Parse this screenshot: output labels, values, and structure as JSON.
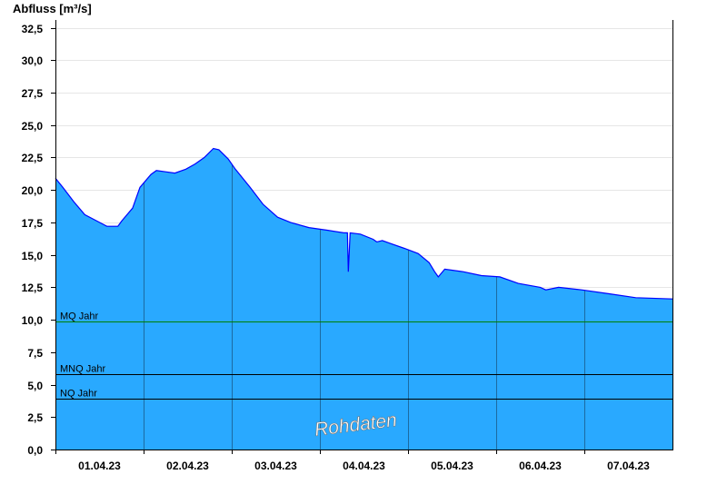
{
  "chart_data": {
    "type": "area",
    "ylabel": "Abfluss [m³/s]",
    "ylim": [
      0,
      33.1
    ],
    "yticks": [
      "0,0",
      "2,5",
      "5,0",
      "7,5",
      "10,0",
      "12,5",
      "15,0",
      "17,5",
      "20,0",
      "22,5",
      "25,0",
      "27,5",
      "30,0",
      "32,5"
    ],
    "ytick_values": [
      0,
      2.5,
      5,
      7.5,
      10,
      12.5,
      15,
      17.5,
      20,
      22.5,
      25,
      27.5,
      30,
      32.5
    ],
    "xlim": [
      "01.04.23 00:00",
      "08.04.23 00:00"
    ],
    "xticks": [
      "01.04.23",
      "02.04.23",
      "03.04.23",
      "04.04.23",
      "05.04.23",
      "06.04.23",
      "07.04.23"
    ],
    "grid": true,
    "colors": {
      "fill": "#29a9ff",
      "line": "#0000ff",
      "mq": "#008000",
      "ref": "#000000",
      "grid": "#e6e6e6"
    },
    "reference_lines": [
      {
        "label": "MQ Jahr",
        "value": 9.9
      },
      {
        "label": "MNQ Jahr",
        "value": 5.8
      },
      {
        "label": "NQ Jahr",
        "value": 3.9
      }
    ],
    "watermark": "Rohdaten",
    "series": [
      {
        "points": [
          [
            "01.04.23 00:00",
            20.9
          ],
          [
            "01.04.23 02:00",
            20.2
          ],
          [
            "01.04.23 05:00",
            19.1
          ],
          [
            "01.04.23 08:00",
            18.1
          ],
          [
            "01.04.23 12:00",
            17.5
          ],
          [
            "01.04.23 14:00",
            17.2
          ],
          [
            "01.04.23 17:00",
            17.2
          ],
          [
            "01.04.23 18:00",
            17.6
          ],
          [
            "01.04.23 21:00",
            18.6
          ],
          [
            "01.04.23 23:00",
            20.2
          ],
          [
            "02.04.23 02:00",
            21.2
          ],
          [
            "02.04.23 03:30",
            21.5
          ],
          [
            "02.04.23 06:00",
            21.4
          ],
          [
            "02.04.23 08:30",
            21.3
          ],
          [
            "02.04.23 11:30",
            21.6
          ],
          [
            "02.04.23 14:00",
            22.0
          ],
          [
            "02.04.23 16:30",
            22.5
          ],
          [
            "02.04.23 19:00",
            23.2
          ],
          [
            "02.04.23 20:30",
            23.1
          ],
          [
            "02.04.23 23:00",
            22.4
          ],
          [
            "03.04.23 01:00",
            21.6
          ],
          [
            "03.04.23 05:00",
            20.2
          ],
          [
            "03.04.23 08:30",
            18.9
          ],
          [
            "03.04.23 12:30",
            17.9
          ],
          [
            "03.04.23 16:00",
            17.5
          ],
          [
            "03.04.23 21:00",
            17.1
          ],
          [
            "04.04.23 02:00",
            16.9
          ],
          [
            "04.04.23 06:30",
            16.7
          ],
          [
            "04.04.23 07:30",
            16.7
          ],
          [
            "04.04.23 07:45",
            13.7
          ],
          [
            "04.04.23 08:15",
            16.7
          ],
          [
            "04.04.23 11:00",
            16.6
          ],
          [
            "04.04.23 14:30",
            16.2
          ],
          [
            "04.04.23 15:30",
            16.0
          ],
          [
            "04.04.23 17:00",
            16.1
          ],
          [
            "04.04.23 19:00",
            15.9
          ],
          [
            "04.04.23 23:00",
            15.5
          ],
          [
            "05.04.23 02:45",
            15.1
          ],
          [
            "05.04.23 05:45",
            14.4
          ],
          [
            "05.04.23 07:15",
            13.7
          ],
          [
            "05.04.23 08:15",
            13.3
          ],
          [
            "05.04.23 10:00",
            13.9
          ],
          [
            "05.04.23 15:00",
            13.7
          ],
          [
            "05.04.23 20:00",
            13.4
          ],
          [
            "06.04.23 01:00",
            13.3
          ],
          [
            "06.04.23 06:00",
            12.8
          ],
          [
            "06.04.23 12:00",
            12.5
          ],
          [
            "06.04.23 13:30",
            12.3
          ],
          [
            "06.04.23 17:00",
            12.5
          ],
          [
            "06.04.23 23:15",
            12.3
          ],
          [
            "07.04.23 06:45",
            12.0
          ],
          [
            "07.04.23 14:00",
            11.7
          ],
          [
            "08.04.23 00:00",
            11.6
          ]
        ]
      }
    ]
  }
}
